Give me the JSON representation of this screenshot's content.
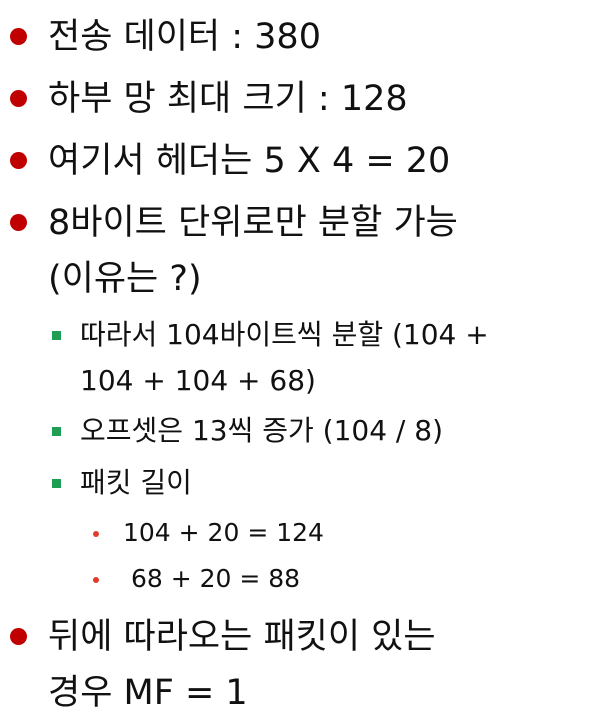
{
  "bullets": [
    {
      "text": "전송 데이터 : 380"
    },
    {
      "text": "하부 망 최대 크기 : 128"
    },
    {
      "text": "여기서 헤더는 5 X 4 = 20"
    },
    {
      "line1": "8바이트 단위로만 분할 가능",
      "line2": "(이유는 ?)"
    },
    {
      "line1": "뒤에 따라오는 패킷이 있는",
      "line2": "경우 MF = 1"
    }
  ],
  "subbullets": [
    {
      "line1": "따라서 104바이트씩 분할 (104 +",
      "line2": "104 + 104 + 68)"
    },
    {
      "text": "오프셋은 13씩 증가 (104 / 8)"
    },
    {
      "text": "패킷 길이"
    }
  ],
  "subsubbullets": [
    {
      "text": "104 + 20 = 124"
    },
    {
      "text": " 68 + 20 = 88"
    }
  ],
  "colors": {
    "level1_bullet": "#c00000",
    "level2_bullet": "#1e9e52",
    "level3_bullet": "#e03b2b",
    "text": "#111111"
  }
}
